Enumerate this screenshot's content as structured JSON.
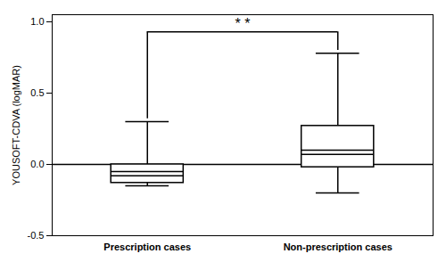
{
  "chart_data": {
    "type": "box",
    "categories": [
      "Prescription cases",
      "Non-prescription cases"
    ],
    "boxes": [
      {
        "whisker_low": -0.15,
        "q1": -0.13,
        "median1": -0.08,
        "median2": -0.05,
        "q3": 0.0,
        "whisker_high": 0.3
      },
      {
        "whisker_low": -0.2,
        "q1": -0.02,
        "median1": 0.07,
        "median2": 0.1,
        "q3": 0.27,
        "whisker_high": 0.78
      }
    ],
    "color": "#000000",
    "ylabel": "YOUSOFT-CDVA (logMAR)",
    "ylim": [
      -0.5,
      1.05
    ],
    "yticks": [
      -0.5,
      {
        "value": 0.0,
        "label": "0.0"
      },
      0.5,
      {
        "value": 1.0,
        "label": "1.0"
      }
    ],
    "reference_line": 0.0,
    "bracket": {
      "y": 0.93,
      "ends": [
        0.32,
        0.8
      ],
      "text": "* *"
    }
  }
}
